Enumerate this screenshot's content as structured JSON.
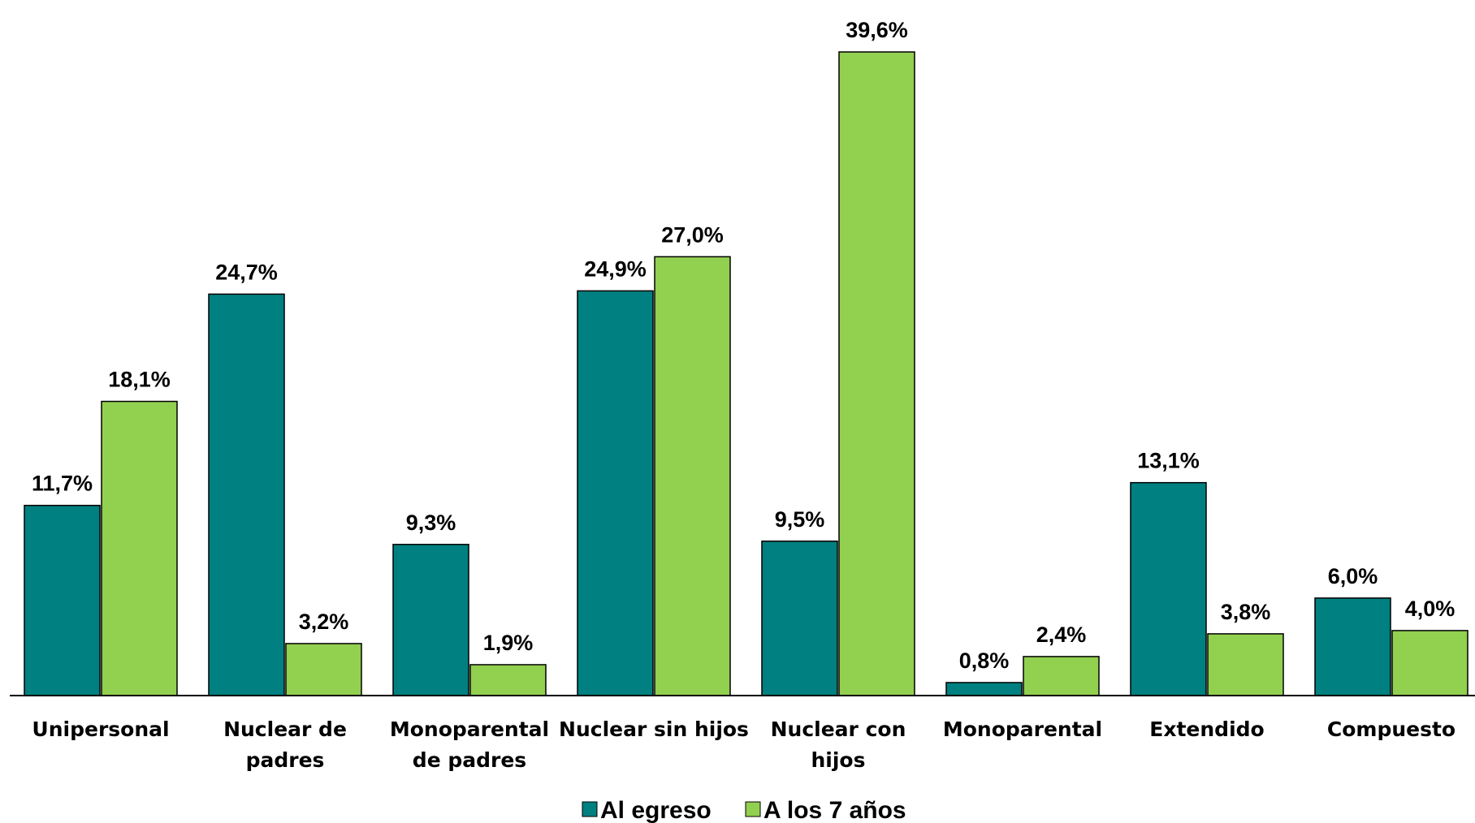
{
  "chart_data": {
    "type": "bar",
    "categories": [
      [
        "Unipersonal"
      ],
      [
        "Nuclear de",
        "padres"
      ],
      [
        "Monoparental",
        "de padres"
      ],
      [
        "Nuclear sin hijos"
      ],
      [
        "Nuclear con",
        "hijos"
      ],
      [
        "Monoparental"
      ],
      [
        "Extendido"
      ],
      [
        "Compuesto"
      ]
    ],
    "series": [
      {
        "name": "Al egreso",
        "color": "#008080",
        "values": [
          11.7,
          24.7,
          9.3,
          24.9,
          9.5,
          0.8,
          13.1,
          6.0
        ],
        "labels": [
          "11,7%",
          "24,7%",
          "9,3%",
          "24,9%",
          "9,5%",
          "0,8%",
          "13,1%",
          "6,0%"
        ]
      },
      {
        "name": "A los 7 años",
        "color": "#92D050",
        "values": [
          18.1,
          3.2,
          1.9,
          27.0,
          39.6,
          2.4,
          3.8,
          4.0
        ],
        "labels": [
          "18,1%",
          "3,2%",
          "1,9%",
          "27,0%",
          "39,6%",
          "2,4%",
          "3,8%",
          "4,0%"
        ]
      }
    ],
    "title": "",
    "xlabel": "",
    "ylabel": "",
    "ylim": [
      0,
      40
    ],
    "grid": false,
    "legend": "bottom-center",
    "axis_color": "#000000"
  }
}
